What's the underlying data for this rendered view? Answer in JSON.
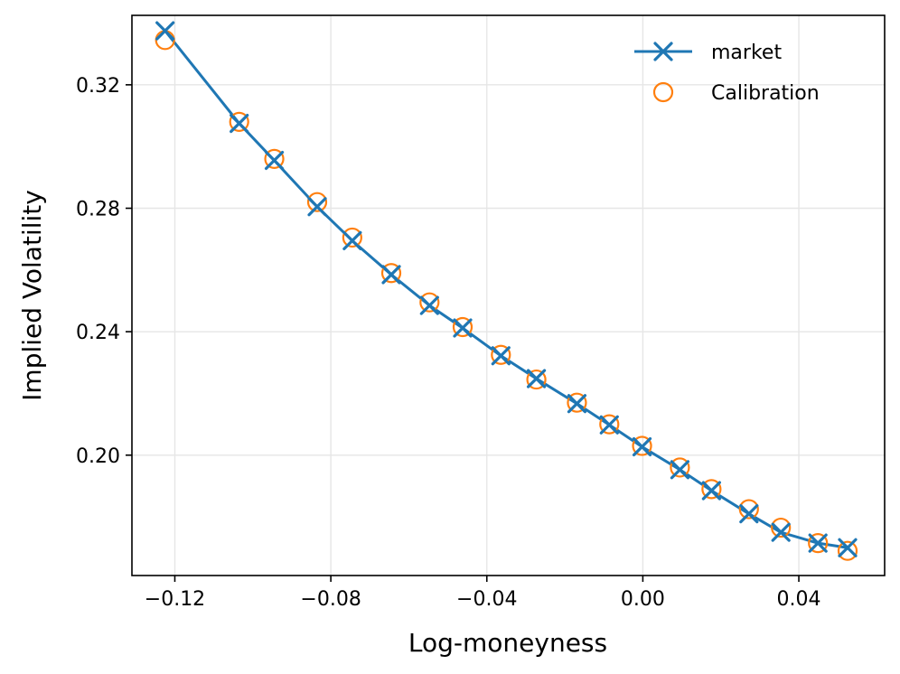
{
  "chart_data": {
    "type": "line",
    "xlabel": "Log-moneyness",
    "ylabel": "Implied Volatility",
    "xlim": [
      -0.131,
      0.062
    ],
    "ylim": [
      0.161,
      0.3425
    ],
    "xticks": [
      -0.12,
      -0.08,
      -0.04,
      0.0,
      0.04
    ],
    "xtick_labels": [
      "−0.12",
      "−0.08",
      "−0.04",
      "0.00",
      "0.04"
    ],
    "yticks": [
      0.2,
      0.24,
      0.28,
      0.32
    ],
    "ytick_labels": [
      "0.20",
      "0.24",
      "0.28",
      "0.32"
    ],
    "grid": true,
    "legend_position": "top-right",
    "colors": {
      "market": "#1f77b4",
      "calibration": "#ff7f0e"
    },
    "series": [
      {
        "name": "market",
        "style": "line-x-marker",
        "x": [
          -0.1225,
          -0.1035,
          -0.0945,
          -0.0835,
          -0.0745,
          -0.0645,
          -0.0547,
          -0.0462,
          -0.0364,
          -0.0273,
          -0.0169,
          -0.0086,
          -0.0002,
          0.0095,
          0.0176,
          0.0272,
          0.0354,
          0.0449,
          0.0525
        ],
        "y": [
          0.3375,
          0.3075,
          0.2955,
          0.2805,
          0.2695,
          0.2585,
          0.2485,
          0.2412,
          0.2322,
          0.2248,
          0.2167,
          0.2098,
          0.2027,
          0.1953,
          0.1885,
          0.181,
          0.175,
          0.1715,
          0.17
        ]
      },
      {
        "name": "Calibration",
        "style": "open-circle",
        "x": [
          -0.1225,
          -0.1035,
          -0.0945,
          -0.0835,
          -0.0745,
          -0.0645,
          -0.0547,
          -0.0462,
          -0.0364,
          -0.0273,
          -0.0169,
          -0.0086,
          -0.0002,
          0.0095,
          0.0176,
          0.0272,
          0.0354,
          0.0449,
          0.0525
        ],
        "y": [
          0.3345,
          0.308,
          0.296,
          0.282,
          0.2705,
          0.259,
          0.2495,
          0.2415,
          0.2325,
          0.2245,
          0.217,
          0.21,
          0.203,
          0.196,
          0.189,
          0.1825,
          0.1765,
          0.1715,
          0.169
        ]
      }
    ]
  }
}
